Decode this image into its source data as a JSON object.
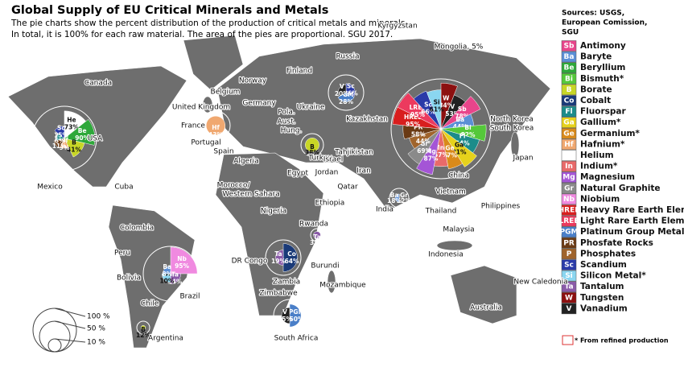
{
  "header": {
    "title": "Global Supply of EU Critical Minerals and Metals",
    "subtitle": [
      "The pie charts show the percent distribution of the production of critical metals and minerals.",
      "In total, it is 100% for each raw material. The area of the pies are proportional. SGU 2017."
    ]
  },
  "sources": [
    "Sources: USGS,",
    "European Comission,",
    "SGU"
  ],
  "legend": {
    "items": [
      {
        "code": "Sb",
        "name": "Antimony",
        "color": "#e8458b"
      },
      {
        "code": "Ba",
        "name": "Baryte",
        "color": "#5b8fd6"
      },
      {
        "code": "Be",
        "name": "Beryllium",
        "color": "#2ea83a"
      },
      {
        "code": "Bi",
        "name": "Bismuth*",
        "color": "#55c83a"
      },
      {
        "code": "B",
        "name": "Borate",
        "color": "#c8d626"
      },
      {
        "code": "Co",
        "name": "Cobalt",
        "color": "#1a3a78"
      },
      {
        "code": "Fl",
        "name": "Fluorspar",
        "color": "#1c8c8a"
      },
      {
        "code": "Ga",
        "name": "Gallium*",
        "color": "#e6d21c"
      },
      {
        "code": "Ge",
        "name": "Germanium*",
        "color": "#d98a1a"
      },
      {
        "code": "Hf",
        "name": "Hafnium*",
        "color": "#f0a870"
      },
      {
        "code": "He",
        "name": "Helium",
        "color": "#ffffff"
      },
      {
        "code": "In",
        "name": "Indium*",
        "color": "#e86a6a"
      },
      {
        "code": "Mg",
        "name": "Magnesium",
        "color": "#a455d6"
      },
      {
        "code": "Gr",
        "name": "Natural Graphite",
        "color": "#8a8a8a"
      },
      {
        "code": "Nb",
        "name": "Niobium",
        "color": "#f08ae0"
      },
      {
        "code": "HREE",
        "name": "Heavy Rare Earth Elem.",
        "color": "#d81e1e"
      },
      {
        "code": "LREE",
        "name": "Light Rare Earth Elem.",
        "color": "#ec3a5e"
      },
      {
        "code": "PGM",
        "name": "Platinum Group Metals",
        "color": "#4a7fc8"
      },
      {
        "code": "PR",
        "name": "Phosfate Rocks",
        "color": "#6a3a14"
      },
      {
        "code": "P",
        "name": "Phosphates",
        "color": "#a0642c"
      },
      {
        "code": "Sc",
        "name": "Scandium",
        "color": "#2a3aa8"
      },
      {
        "code": "Si",
        "name": "Silicon Metal*",
        "color": "#8ad6f0"
      },
      {
        "code": "Ta",
        "name": "Tantalum",
        "color": "#8a5aa8"
      },
      {
        "code": "W",
        "name": "Tungsten",
        "color": "#8c1010"
      },
      {
        "code": "V",
        "name": "Vanadium",
        "color": "#222222"
      }
    ]
  },
  "footnote": "* From refined production",
  "size_legend": [
    "100 %",
    "50 %",
    "10 %"
  ],
  "countries": [
    {
      "name": "USA",
      "slices": [
        {
          "code": "He",
          "value": 73,
          "label": "73%"
        },
        {
          "code": "Be",
          "value": 90,
          "label": "90%"
        },
        {
          "code": "B",
          "value": 41,
          "label": "41%"
        },
        {
          "code": "Hf",
          "value": 9,
          "label": "9%"
        },
        {
          "code": "PR",
          "value": 11,
          "label": "11%"
        },
        {
          "code": "Fl",
          "value": 6,
          "label": "6%"
        },
        {
          "code": "Sc",
          "value": 15,
          "label": "15%"
        }
      ]
    },
    {
      "name": "Brazil",
      "slices": [
        {
          "code": "Nb",
          "value": 95,
          "label": "95%"
        },
        {
          "code": "Ta",
          "value": 14,
          "label": "14%"
        },
        {
          "code": "Si",
          "value": 10,
          "label": "10%"
        },
        {
          "code": "Ba",
          "value": 8,
          "label": "8%"
        }
      ]
    },
    {
      "name": "China",
      "slices": [
        {
          "code": "W",
          "value": 84,
          "label": "84%"
        },
        {
          "code": "V",
          "value": 53,
          "label": "53%"
        },
        {
          "code": "Sb",
          "value": 78,
          "label": "78%"
        },
        {
          "code": "Ba",
          "value": 44,
          "label": "44%"
        },
        {
          "code": "Bi",
          "value": 82,
          "label": "82%"
        },
        {
          "code": "Fl",
          "value": 64,
          "label": "64%"
        },
        {
          "code": "Ga",
          "value": 81,
          "label": "81%"
        },
        {
          "code": "Ge",
          "value": 67,
          "label": "67%"
        },
        {
          "code": "In",
          "value": 57,
          "label": "57%"
        },
        {
          "code": "Mg",
          "value": 87,
          "label": "87%"
        },
        {
          "code": "Gr",
          "value": 69,
          "label": "69%"
        },
        {
          "code": "P",
          "value": 44,
          "label": "44%"
        },
        {
          "code": "PR",
          "value": 58,
          "label": "58%"
        },
        {
          "code": "HREE",
          "value": 95,
          "label": "95%"
        },
        {
          "code": "LREE",
          "value": 95,
          "label": "95%"
        },
        {
          "code": "Sc",
          "value": 66,
          "label": "66%"
        },
        {
          "code": "Si",
          "value": 61,
          "label": "61%"
        }
      ]
    },
    {
      "name": "DR Congo",
      "slices": [
        {
          "code": "Co",
          "value": 64,
          "label": "64%"
        },
        {
          "code": "Ta",
          "value": 19,
          "label": "19%"
        }
      ]
    },
    {
      "name": "South Africa",
      "slices": [
        {
          "code": "PGM",
          "value": 50,
          "label": "50%"
        },
        {
          "code": "V",
          "value": 25,
          "label": "25%"
        }
      ]
    },
    {
      "name": "Russia",
      "slices": [
        {
          "code": "Sc",
          "value": 26,
          "label": "26%"
        },
        {
          "code": "PGM",
          "value": 28,
          "label": "28%"
        },
        {
          "code": "V",
          "value": 20,
          "label": "20%"
        }
      ]
    },
    {
      "name": "France",
      "slices": [
        {
          "code": "Hf",
          "value": 43,
          "label": "43%"
        }
      ]
    },
    {
      "name": "Turkey",
      "slices": [
        {
          "code": "B",
          "value": 38,
          "label": "38%"
        }
      ]
    },
    {
      "name": "Rwanda",
      "slices": [
        {
          "code": "Ta",
          "value": 31,
          "label": "31%"
        }
      ]
    },
    {
      "name": "Argentina",
      "slices": [
        {
          "code": "B",
          "value": 12,
          "label": "12%"
        }
      ]
    },
    {
      "name": "India",
      "slices": [
        {
          "code": "Gr",
          "value": 12,
          "label": "12%"
        },
        {
          "code": "Ba",
          "value": 18,
          "label": "18%"
        }
      ]
    },
    {
      "name": "Canada"
    },
    {
      "name": "Mexico"
    },
    {
      "name": "Cuba"
    },
    {
      "name": "Colombia"
    },
    {
      "name": "Peru"
    },
    {
      "name": "Bolivia"
    },
    {
      "name": "Chile"
    },
    {
      "name": "Norway"
    },
    {
      "name": "Finland"
    },
    {
      "name": "Belgium"
    },
    {
      "name": "Germany"
    },
    {
      "name": "United Kingdom"
    },
    {
      "name": "Portugal"
    },
    {
      "name": "Spain"
    },
    {
      "name": "Algeria"
    },
    {
      "name": "Morocco/"
    },
    {
      "name": "Western Sahara"
    },
    {
      "name": "Egypt"
    },
    {
      "name": "Israel"
    },
    {
      "name": "Jordan"
    },
    {
      "name": "Iran"
    },
    {
      "name": "Qatar"
    },
    {
      "name": "Tahjikistan"
    },
    {
      "name": "Kyrgyzstan"
    },
    {
      "name": "Kazakhstan"
    },
    {
      "name": "Ukraine"
    },
    {
      "name": "Pola."
    },
    {
      "name": "Aust."
    },
    {
      "name": "Hung."
    },
    {
      "name": "Nigeria"
    },
    {
      "name": "Ethiopia"
    },
    {
      "name": "Burundi"
    },
    {
      "name": "Zambia"
    },
    {
      "name": "Zimbabwe"
    },
    {
      "name": "Mozambique"
    },
    {
      "name": "Thailand"
    },
    {
      "name": "Vietnam"
    },
    {
      "name": "Malaysia"
    },
    {
      "name": "Indonesia"
    },
    {
      "name": "Philippines"
    },
    {
      "name": "Japan"
    },
    {
      "name": "North Korea"
    },
    {
      "name": "South Korea"
    },
    {
      "name": "Australia"
    },
    {
      "name": "New Caledonia"
    },
    {
      "name": "Mongolia, 5%"
    }
  ]
}
